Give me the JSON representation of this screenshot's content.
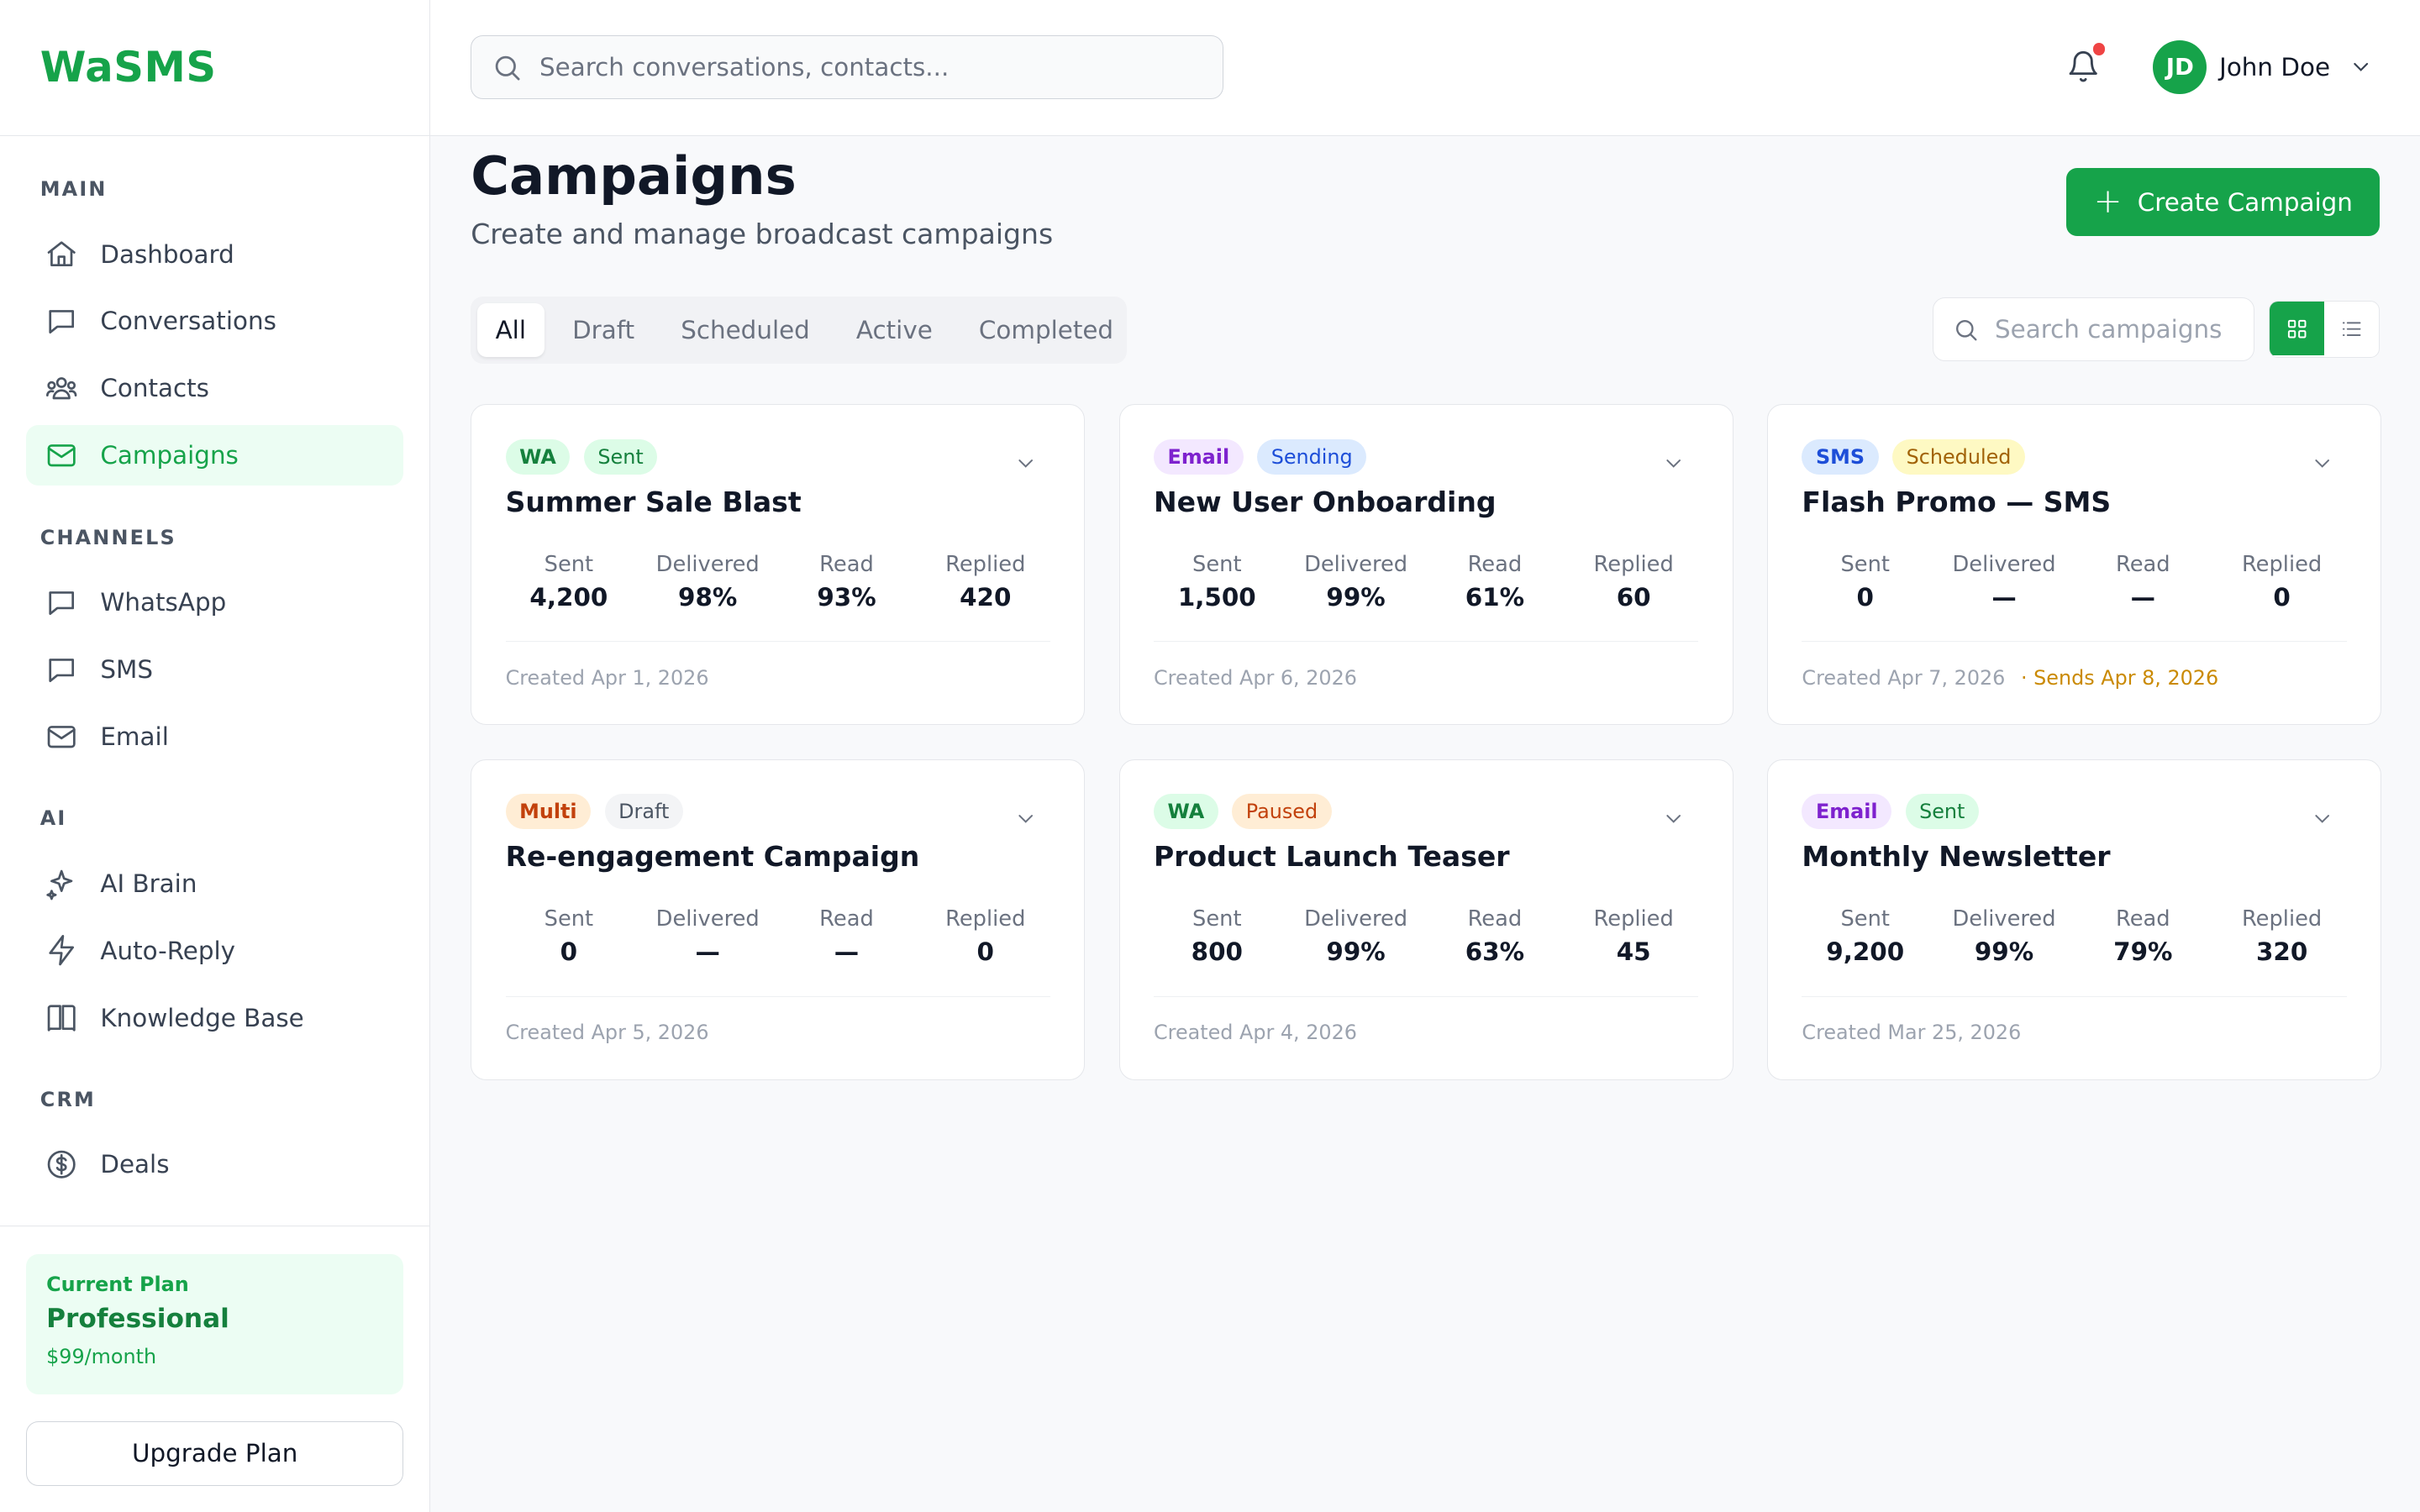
{
  "brand": "WaSMS",
  "sidebar": {
    "sections": [
      {
        "title": "MAIN",
        "items": [
          {
            "label": "Dashboard",
            "icon": "home-icon"
          },
          {
            "label": "Conversations",
            "icon": "chat-icon"
          },
          {
            "label": "Contacts",
            "icon": "users-icon"
          },
          {
            "label": "Campaigns",
            "icon": "mail-icon",
            "active": true
          }
        ]
      },
      {
        "title": "CHANNELS",
        "items": [
          {
            "label": "WhatsApp",
            "icon": "chat-icon"
          },
          {
            "label": "SMS",
            "icon": "chat-icon"
          },
          {
            "label": "Email",
            "icon": "mail-icon"
          }
        ]
      },
      {
        "title": "AI",
        "items": [
          {
            "label": "AI Brain",
            "icon": "sparkles-icon"
          },
          {
            "label": "Auto-Reply",
            "icon": "bolt-icon"
          },
          {
            "label": "Knowledge Base",
            "icon": "book-icon"
          }
        ]
      },
      {
        "title": "CRM",
        "items": [
          {
            "label": "Deals",
            "icon": "dollar-icon"
          }
        ]
      }
    ],
    "plan": {
      "label": "Current Plan",
      "name": "Professional",
      "price": "$99/month"
    },
    "upgrade_label": "Upgrade Plan"
  },
  "topbar": {
    "search_placeholder": "Search conversations, contacts...",
    "user": {
      "initials": "JD",
      "name": "John Doe"
    }
  },
  "page": {
    "title": "Campaigns",
    "subtitle": "Create and manage broadcast campaigns",
    "create_label": "Create Campaign",
    "tabs": [
      "All",
      "Draft",
      "Scheduled",
      "Active",
      "Completed"
    ],
    "active_tab": 0,
    "search_placeholder": "Search campaigns"
  },
  "stat_labels": [
    "Sent",
    "Delivered",
    "Read",
    "Replied"
  ],
  "colors": {
    "accent": "#16a34a",
    "wa": {
      "bg": "#dcfce7",
      "fg": "#15803d"
    },
    "email": {
      "bg": "#f3e8ff",
      "fg": "#7e22ce"
    },
    "sms": {
      "bg": "#dbeafe",
      "fg": "#1d4ed8"
    },
    "multi": {
      "bg": "#ffedd5",
      "fg": "#c2410c"
    },
    "sent": {
      "bg": "#dcfce7",
      "fg": "#15803d"
    },
    "sending": {
      "bg": "#dbeafe",
      "fg": "#1d4ed8"
    },
    "scheduled": {
      "bg": "#fef9c3",
      "fg": "#a16207"
    },
    "draft": {
      "bg": "#f3f4f6",
      "fg": "#4b5563"
    },
    "paused": {
      "bg": "#ffedd5",
      "fg": "#c2410c"
    }
  },
  "campaigns": [
    {
      "channel": "WA",
      "channel_style": "wa",
      "status": "Sent",
      "status_style": "sent",
      "title": "Summer Sale Blast",
      "stats": [
        "4,200",
        "98%",
        "93%",
        "420"
      ],
      "created": "Created Apr 1, 2026",
      "extra": ""
    },
    {
      "channel": "Email",
      "channel_style": "email",
      "status": "Sending",
      "status_style": "sending",
      "title": "New User Onboarding",
      "stats": [
        "1,500",
        "99%",
        "61%",
        "60"
      ],
      "created": "Created Apr 6, 2026",
      "extra": ""
    },
    {
      "channel": "SMS",
      "channel_style": "sms",
      "status": "Scheduled",
      "status_style": "scheduled",
      "title": "Flash Promo — SMS",
      "stats": [
        "0",
        "—",
        "—",
        "0"
      ],
      "created": "Created Apr 7, 2026",
      "extra": "· Sends Apr 8, 2026"
    },
    {
      "channel": "Multi",
      "channel_style": "multi",
      "status": "Draft",
      "status_style": "draft",
      "title": "Re-engagement Campaign",
      "stats": [
        "0",
        "—",
        "—",
        "0"
      ],
      "created": "Created Apr 5, 2026",
      "extra": ""
    },
    {
      "channel": "WA",
      "channel_style": "wa",
      "status": "Paused",
      "status_style": "paused",
      "title": "Product Launch Teaser",
      "stats": [
        "800",
        "99%",
        "63%",
        "45"
      ],
      "created": "Created Apr 4, 2026",
      "extra": ""
    },
    {
      "channel": "Email",
      "channel_style": "email",
      "status": "Sent",
      "status_style": "sent",
      "title": "Monthly Newsletter",
      "stats": [
        "9,200",
        "99%",
        "79%",
        "320"
      ],
      "created": "Created Mar 25, 2026",
      "extra": ""
    }
  ]
}
